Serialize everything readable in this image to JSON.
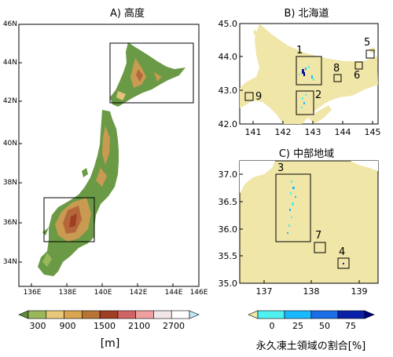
{
  "panel_a": {
    "title": "A) 高度",
    "lat_ticks": [
      "46N",
      "44N",
      "42N",
      "40N",
      "38N",
      "36N",
      "34N"
    ],
    "lon_ticks": [
      "136E",
      "138E",
      "140E",
      "142E",
      "144E",
      "146E"
    ]
  },
  "panel_b": {
    "title": "B) 北海道",
    "y_ticks": [
      "45.0",
      "44.0",
      "43.0",
      "42.0"
    ],
    "x_ticks": [
      "141",
      "142",
      "143",
      "144",
      "145"
    ],
    "region_labels": [
      "1",
      "2",
      "5",
      "6",
      "8",
      "9"
    ]
  },
  "panel_c": {
    "title": "C) 中部地域",
    "y_ticks": [
      "37.0",
      "36.5",
      "36.0",
      "35.5",
      "35.0"
    ],
    "x_ticks": [
      "137",
      "138",
      "139"
    ],
    "region_labels": [
      "3",
      "4",
      "7"
    ]
  },
  "elevation_colorbar": {
    "tick_labels": [
      "300",
      "900",
      "1500",
      "2100",
      "2700"
    ],
    "unit": "[m]",
    "colors": [
      "#5f8a3c",
      "#9ab85a",
      "#e8c77a",
      "#d9a550",
      "#b87435",
      "#9e3f24",
      "#d06464",
      "#f0a0a0",
      "#f2e6e8",
      "#ffffff",
      "#bfe6f5"
    ]
  },
  "permafrost_colorbar": {
    "tick_labels": [
      "0",
      "25",
      "50",
      "75"
    ],
    "label": "永久凍土領域の割合[%]",
    "colors": [
      "#f0e6a8",
      "#4ef0f0",
      "#1ab8ff",
      "#1a6ee6",
      "#0a1fa8",
      "#00007a"
    ]
  }
}
